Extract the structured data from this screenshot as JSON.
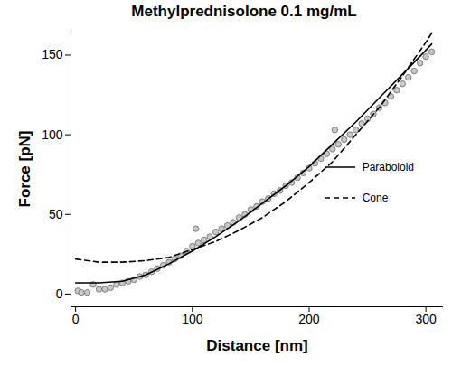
{
  "chart_data": {
    "type": "scatter",
    "title": "Methylprednisolone 0.1 mg/mL",
    "x_label": "Distance [nm]",
    "y_label": "Force [pN]",
    "xlim": [
      -4,
      315
    ],
    "ylim": [
      -8,
      165
    ],
    "xticks": [
      0,
      100,
      200,
      300
    ],
    "yticks": [
      0,
      50,
      100,
      150
    ],
    "legend": "right",
    "series": [
      {
        "type": "scatter",
        "color": "#c8c8c8",
        "marker": "circle",
        "x": [
          2,
          5,
          10,
          15,
          20,
          25,
          30,
          35,
          40,
          45,
          50,
          55,
          60,
          65,
          70,
          75,
          80,
          85,
          90,
          95,
          100,
          103,
          105,
          110,
          115,
          120,
          125,
          130,
          135,
          140,
          145,
          150,
          155,
          160,
          165,
          170,
          175,
          180,
          185,
          190,
          195,
          200,
          205,
          210,
          215,
          220,
          222,
          225,
          230,
          235,
          240,
          245,
          250,
          255,
          260,
          265,
          270,
          275,
          280,
          285,
          290,
          295,
          300,
          305
        ],
        "values": [
          2,
          1,
          1,
          6,
          3,
          3,
          4,
          6,
          7,
          8,
          9,
          11,
          12,
          14,
          16,
          18,
          20,
          22,
          24,
          27,
          30,
          41,
          32,
          34,
          36,
          39,
          41,
          43,
          45,
          48,
          50,
          53,
          55,
          58,
          60,
          63,
          65,
          68,
          70,
          73,
          76,
          79,
          82,
          85,
          88,
          91,
          103,
          94,
          97,
          100,
          103,
          107,
          110,
          113,
          117,
          120,
          124,
          128,
          132,
          136,
          140,
          145,
          149,
          152
        ]
      },
      {
        "name": "Paraboloid",
        "type": "line",
        "line_style": "solid",
        "color": "#000000",
        "x": [
          0,
          10,
          20,
          40,
          60,
          80,
          100,
          120,
          140,
          160,
          180,
          200,
          220,
          240,
          260,
          280,
          300,
          305
        ],
        "values": [
          7,
          7,
          7,
          8,
          12,
          19,
          27,
          36,
          46,
          57,
          68,
          80,
          94,
          108,
          123,
          138,
          153,
          157
        ]
      },
      {
        "name": "Cone",
        "type": "line",
        "line_style": "dashed",
        "color": "#000000",
        "x": [
          0,
          20,
          40,
          60,
          80,
          100,
          120,
          140,
          160,
          180,
          200,
          220,
          240,
          260,
          280,
          300,
          306
        ],
        "values": [
          22,
          20,
          20,
          21,
          23,
          28,
          33,
          40,
          48,
          58,
          70,
          83,
          100,
          117,
          137,
          158,
          165
        ]
      }
    ]
  }
}
